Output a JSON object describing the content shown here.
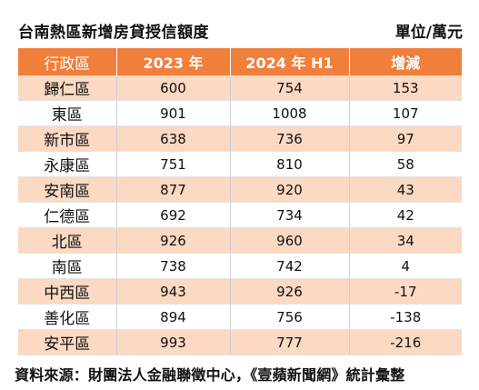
{
  "header": {
    "title": "台南熱區新增房貸授信額度",
    "unit": "單位/萬元"
  },
  "table": {
    "columns": [
      "行政區",
      "2023 年",
      "2024 年 H1",
      "增減"
    ],
    "rows": [
      {
        "district": "歸仁區",
        "y2023": "600",
        "y2024h1": "754",
        "change": "153"
      },
      {
        "district": "東區",
        "y2023": "901",
        "y2024h1": "1008",
        "change": "107"
      },
      {
        "district": "新市區",
        "y2023": "638",
        "y2024h1": "736",
        "change": "97"
      },
      {
        "district": "永康區",
        "y2023": "751",
        "y2024h1": "810",
        "change": "58"
      },
      {
        "district": "安南區",
        "y2023": "877",
        "y2024h1": "920",
        "change": "43"
      },
      {
        "district": "仁德區",
        "y2023": "692",
        "y2024h1": "734",
        "change": "42"
      },
      {
        "district": "北區",
        "y2023": "926",
        "y2024h1": "960",
        "change": "34"
      },
      {
        "district": "南區",
        "y2023": "738",
        "y2024h1": "742",
        "change": "4"
      },
      {
        "district": "中西區",
        "y2023": "943",
        "y2024h1": "926",
        "change": "-17"
      },
      {
        "district": "善化區",
        "y2023": "894",
        "y2024h1": "756",
        "change": "-138"
      },
      {
        "district": "安平區",
        "y2023": "993",
        "y2024h1": "777",
        "change": "-216"
      }
    ]
  },
  "footer": {
    "source": "資料來源：財團法人金融聯徵中心，《壹蘋新聞網》統計彙整"
  },
  "colors": {
    "header_bg": "#f07f3c",
    "band_bg": "#fbd9c2"
  }
}
